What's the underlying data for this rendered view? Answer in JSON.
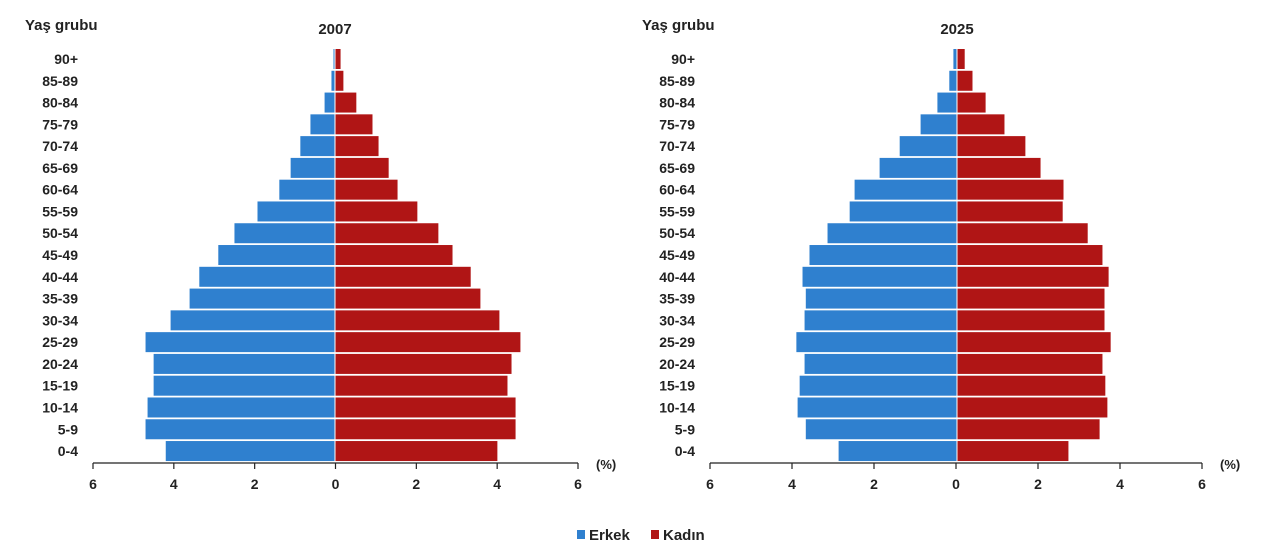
{
  "colors": {
    "male": "#2f80cf",
    "female": "#b01515"
  },
  "legend": {
    "male": "Erkek",
    "female": "Kadın"
  },
  "chart_data": [
    {
      "type": "bar",
      "orientation": "horizontal-pyramid",
      "title": "2007",
      "ylabel": "Yaş grubu",
      "xlabel": "(%)",
      "xlim": [
        -6,
        6
      ],
      "xticks": [
        "6",
        "4",
        "2",
        "0",
        "2",
        "4",
        "6"
      ],
      "categories": [
        "90+",
        "85-89",
        "80-84",
        "75-79",
        "70-74",
        "65-69",
        "60-64",
        "55-59",
        "50-54",
        "45-49",
        "40-44",
        "35-39",
        "30-34",
        "25-29",
        "20-24",
        "15-19",
        "10-14",
        "5-9",
        "0-4"
      ],
      "series": [
        {
          "name": "Erkek",
          "values": [
            0.05,
            0.1,
            0.27,
            0.62,
            0.87,
            1.11,
            1.39,
            1.93,
            2.5,
            2.9,
            3.37,
            3.61,
            4.08,
            4.7,
            4.5,
            4.5,
            4.65,
            4.7,
            4.2
          ]
        },
        {
          "name": "Kadın",
          "values": [
            0.15,
            0.22,
            0.54,
            0.94,
            1.09,
            1.34,
            1.56,
            2.05,
            2.57,
            2.92,
            3.37,
            3.61,
            4.08,
            4.6,
            4.38,
            4.28,
            4.48,
            4.48,
            4.03
          ]
        }
      ]
    },
    {
      "type": "bar",
      "orientation": "horizontal-pyramid",
      "title": "2025",
      "ylabel": "Yaş grubu",
      "xlabel": "(%)",
      "xlim": [
        -6,
        6
      ],
      "xticks": [
        "6",
        "4",
        "2",
        "0",
        "2",
        "4",
        "6"
      ],
      "categories": [
        "90+",
        "85-89",
        "80-84",
        "75-79",
        "70-74",
        "65-69",
        "60-64",
        "55-59",
        "50-54",
        "45-49",
        "40-44",
        "35-39",
        "30-34",
        "25-29",
        "20-24",
        "15-19",
        "10-14",
        "5-9",
        "0-4"
      ],
      "series": [
        {
          "name": "Erkek",
          "values": [
            0.1,
            0.2,
            0.49,
            0.9,
            1.41,
            1.9,
            2.51,
            2.63,
            3.17,
            3.61,
            3.78,
            3.7,
            3.73,
            3.93,
            3.73,
            3.85,
            3.9,
            3.7,
            2.9
          ]
        },
        {
          "name": "Kadın",
          "values": [
            0.2,
            0.39,
            0.71,
            1.17,
            1.68,
            2.05,
            2.61,
            2.59,
            3.2,
            3.56,
            3.71,
            3.61,
            3.61,
            3.76,
            3.56,
            3.63,
            3.68,
            3.49,
            2.73
          ]
        }
      ]
    }
  ]
}
